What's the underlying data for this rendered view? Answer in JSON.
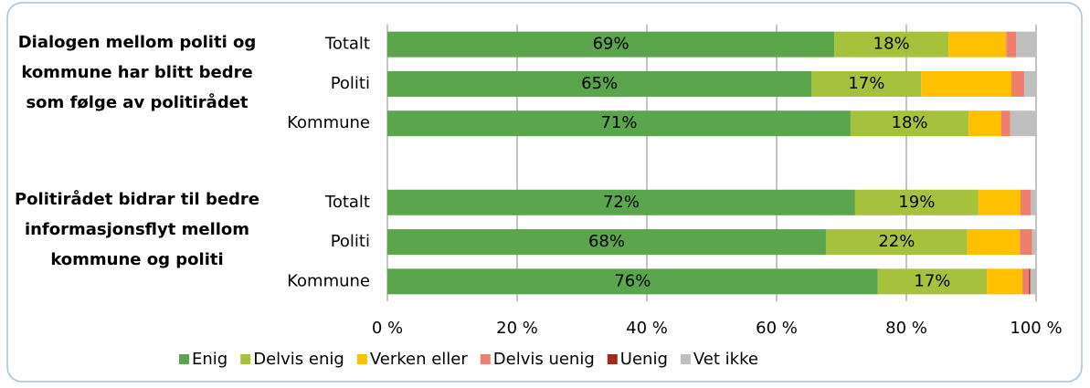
{
  "chart_data": {
    "type": "stacked_bar_horizontal",
    "group_labels": [
      "Dialogen mellom politi og kommune har blitt bedre som følge av politirådet",
      "Politirådet bidrar til bedre informasjonsflyt mellom kommune og politi"
    ],
    "categories": [
      "Totalt",
      "Politi",
      "Kommune",
      null,
      "Totalt",
      "Politi",
      "Kommune"
    ],
    "series": [
      {
        "name": "Enig",
        "color": "#5ba54d",
        "values": [
          68.9,
          65.4,
          71.4,
          null,
          72.1,
          67.6,
          75.6
        ],
        "value_labels": [
          "69%",
          "65%",
          "71%",
          null,
          "72%",
          "68%",
          "76%"
        ]
      },
      {
        "name": "Delvis enig",
        "color": "#a6c13c",
        "values": [
          17.6,
          16.9,
          18.2,
          null,
          19.0,
          21.8,
          16.8
        ],
        "value_labels": [
          "18%",
          "17%",
          "18%",
          null,
          "19%",
          "22%",
          "17%"
        ]
      },
      {
        "name": "Verken eller",
        "color": "#ffc000",
        "values": [
          8.9,
          13.9,
          5.0,
          null,
          6.5,
          8.1,
          5.5
        ]
      },
      {
        "name": "Delvis uenig",
        "color": "#ee7f6f",
        "values": [
          1.5,
          2.0,
          1.4,
          null,
          1.6,
          1.9,
          1.0
        ]
      },
      {
        "name": "Uenig",
        "color": "#a32a1a",
        "values": [
          0,
          0,
          0,
          null,
          0,
          0,
          0.2
        ]
      },
      {
        "name": "Vet ikke",
        "color": "#bfbfbf",
        "values": [
          3.1,
          1.8,
          4.0,
          null,
          0.8,
          0.6,
          0.9
        ]
      }
    ],
    "xlim": [
      0,
      100
    ],
    "xticks": [
      {
        "value": 0,
        "label": "0 %"
      },
      {
        "value": 20,
        "label": "20 %"
      },
      {
        "value": 40,
        "label": "40 %"
      },
      {
        "value": 60,
        "label": "60 %"
      },
      {
        "value": 80,
        "label": "80 %"
      },
      {
        "value": 100,
        "label": "100 %"
      }
    ],
    "grid": true
  }
}
